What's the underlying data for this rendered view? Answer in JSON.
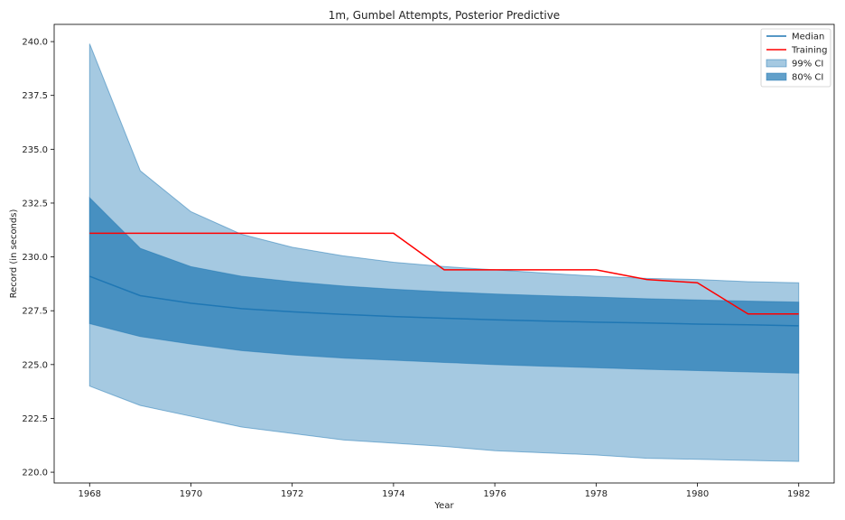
{
  "chart_data": {
    "type": "line",
    "title": "1m, Gumbel Attempts, Posterior Predictive",
    "xlabel": "Year",
    "ylabel": "Record (in seconds)",
    "xlim": [
      1967.3,
      1982.7
    ],
    "ylim": [
      219.5,
      240.8
    ],
    "xticks": [
      1968,
      1970,
      1972,
      1974,
      1976,
      1978,
      1980,
      1982
    ],
    "xtick_labels": [
      "1968",
      "1970",
      "1972",
      "1974",
      "1976",
      "1978",
      "1980",
      "1982"
    ],
    "yticks": [
      220.0,
      222.5,
      225.0,
      227.5,
      230.0,
      232.5,
      235.0,
      237.5,
      240.0
    ],
    "ytick_labels": [
      "220.0",
      "222.5",
      "225.0",
      "227.5",
      "230.0",
      "232.5",
      "235.0",
      "237.5",
      "240.0"
    ],
    "grid": false,
    "legend_position": "top-right",
    "x": [
      1968,
      1969,
      1970,
      1971,
      1972,
      1973,
      1974,
      1975,
      1976,
      1977,
      1978,
      1979,
      1980,
      1981,
      1982
    ],
    "series": [
      {
        "name": "Median",
        "kind": "line",
        "color": "#1f77b4",
        "values": [
          229.1,
          228.2,
          227.85,
          227.6,
          227.45,
          227.33,
          227.23,
          227.15,
          227.08,
          227.02,
          226.97,
          226.93,
          226.88,
          226.85,
          226.8
        ]
      },
      {
        "name": "Training",
        "kind": "line",
        "color": "#ff0000",
        "values": [
          231.1,
          231.1,
          231.1,
          231.1,
          231.1,
          231.1,
          231.1,
          229.4,
          229.4,
          229.4,
          229.4,
          228.95,
          228.8,
          227.35,
          227.35
        ]
      },
      {
        "name": "99% CI",
        "kind": "band",
        "color": "#1f77b4",
        "opacity": 0.4,
        "lower": [
          224.0,
          223.1,
          222.6,
          222.1,
          221.8,
          221.5,
          221.35,
          221.2,
          221.0,
          220.9,
          220.8,
          220.65,
          220.6,
          220.55,
          220.5
        ],
        "upper": [
          239.9,
          234.0,
          232.1,
          231.05,
          230.45,
          230.05,
          229.75,
          229.55,
          229.4,
          229.25,
          229.1,
          229.0,
          228.95,
          228.85,
          228.8
        ]
      },
      {
        "name": "80% CI",
        "kind": "band",
        "color": "#1f77b4",
        "opacity": 0.7,
        "lower": [
          226.9,
          226.3,
          225.95,
          225.65,
          225.45,
          225.3,
          225.2,
          225.1,
          225.0,
          224.92,
          224.85,
          224.78,
          224.72,
          224.66,
          224.6
        ],
        "upper": [
          232.75,
          230.4,
          229.55,
          229.1,
          228.85,
          228.65,
          228.5,
          228.38,
          228.28,
          228.2,
          228.13,
          228.06,
          228.0,
          227.95,
          227.9
        ]
      }
    ]
  }
}
